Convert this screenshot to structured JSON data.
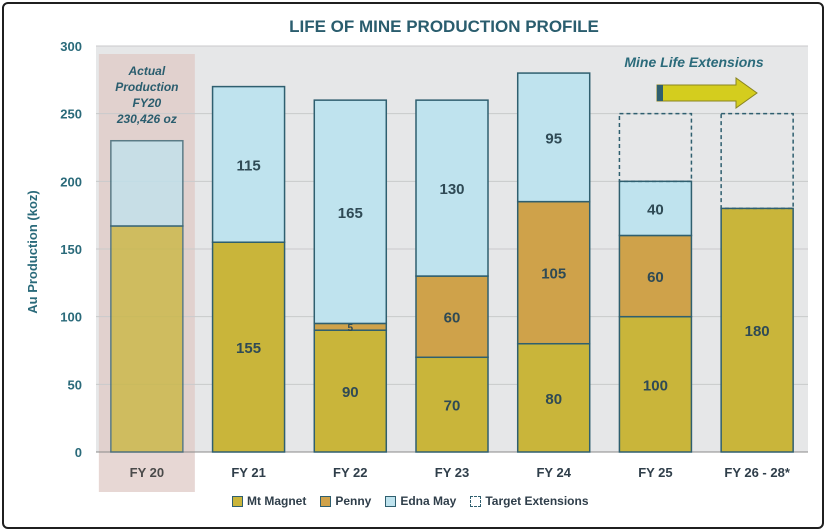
{
  "chart_data": {
    "type": "bar",
    "stacked": true,
    "title": "LIFE OF MINE PRODUCTION PROFILE",
    "ylabel": "Au Production (koz)",
    "xlabel": "",
    "ylim": [
      0,
      300
    ],
    "yticks": [
      0,
      50,
      100,
      150,
      200,
      250,
      300
    ],
    "categories": [
      "FY 20",
      "FY 21",
      "FY 22",
      "FY 23",
      "FY 24",
      "FY 25",
      "FY 26 - 28*"
    ],
    "series": [
      {
        "name": "Mt Magnet",
        "color": "#c9b53a",
        "values": [
          167,
          155,
          90,
          70,
          80,
          100,
          180
        ],
        "labels": [
          "",
          "155",
          "90",
          "70",
          "80",
          "100",
          "180"
        ]
      },
      {
        "name": "Penny",
        "color": "#cfa24a",
        "values": [
          0,
          0,
          5,
          60,
          105,
          60,
          0
        ],
        "labels": [
          "",
          "",
          "5",
          "60",
          "105",
          "60",
          ""
        ]
      },
      {
        "name": "Edna May",
        "color": "#bfe3ee",
        "values": [
          63,
          115,
          165,
          130,
          95,
          40,
          0
        ],
        "labels": [
          "",
          "115",
          "165",
          "130",
          "95",
          "40",
          ""
        ]
      },
      {
        "name": "Target Extensions",
        "color": "#2f5f6f",
        "values": [
          0,
          0,
          0,
          0,
          0,
          50,
          70
        ],
        "labels": [
          "",
          "",
          "",
          "",
          "",
          "",
          ""
        ]
      }
    ],
    "annotations": {
      "actual_box": [
        "Actual",
        "Production",
        "FY20",
        "230,426 oz"
      ],
      "mine_life": "Mine Life Extensions"
    },
    "legend": [
      "Mt Magnet",
      "Penny",
      "Edna May",
      "Target Extensions"
    ]
  }
}
